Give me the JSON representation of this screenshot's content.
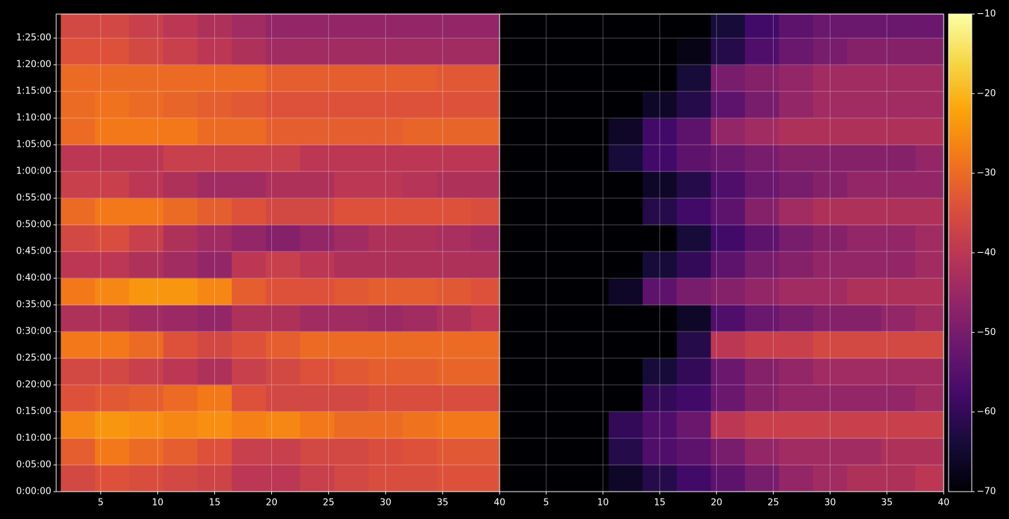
{
  "chart_data": [
    {
      "type": "heatmap",
      "x": [
        3,
        6,
        9,
        12,
        15,
        18,
        21,
        24,
        27,
        30,
        33,
        36,
        39
      ],
      "y": [
        2.5,
        7.5,
        12.5,
        17.5,
        22.5,
        27.5,
        32.5,
        37.5,
        42.5,
        47.5,
        52.5,
        57.5,
        62.5,
        67.5,
        72.5,
        77.5,
        82.5,
        87.5
      ],
      "values": [
        [
          -36,
          -34,
          -35,
          -36,
          -37,
          -40,
          -40,
          -38,
          -36,
          -35,
          -35,
          -34,
          -34
        ],
        [
          -32,
          -28,
          -30,
          -32,
          -34,
          -38,
          -38,
          -36,
          -36,
          -35,
          -34,
          -33,
          -33
        ],
        [
          -26,
          -24,
          -25,
          -26,
          -25,
          -27,
          -26,
          -28,
          -30,
          -30,
          -29,
          -28,
          -28
        ],
        [
          -34,
          -33,
          -32,
          -30,
          -28,
          -34,
          -36,
          -36,
          -36,
          -35,
          -35,
          -35,
          -35
        ],
        [
          -36,
          -36,
          -38,
          -40,
          -42,
          -38,
          -36,
          -34,
          -33,
          -32,
          -32,
          -31,
          -31
        ],
        [
          -28,
          -28,
          -30,
          -34,
          -36,
          -34,
          -32,
          -30,
          -30,
          -30,
          -30,
          -30,
          -30
        ],
        [
          -42,
          -42,
          -44,
          -45,
          -46,
          -42,
          -42,
          -44,
          -44,
          -45,
          -44,
          -42,
          -40
        ],
        [
          -28,
          -26,
          -24,
          -24,
          -26,
          -32,
          -34,
          -34,
          -33,
          -32,
          -32,
          -33,
          -34
        ],
        [
          -40,
          -40,
          -42,
          -44,
          -46,
          -40,
          -38,
          -40,
          -42,
          -42,
          -42,
          -42,
          -42
        ],
        [
          -36,
          -35,
          -38,
          -42,
          -44,
          -46,
          -48,
          -46,
          -44,
          -42,
          -42,
          -43,
          -44
        ],
        [
          -30,
          -28,
          -28,
          -30,
          -32,
          -34,
          -36,
          -36,
          -34,
          -34,
          -34,
          -34,
          -35
        ],
        [
          -38,
          -38,
          -40,
          -42,
          -44,
          -44,
          -42,
          -42,
          -40,
          -40,
          -41,
          -42,
          -42
        ],
        [
          -40,
          -40,
          -40,
          -38,
          -38,
          -38,
          -38,
          -40,
          -40,
          -40,
          -40,
          -40,
          -40
        ],
        [
          -30,
          -28,
          -28,
          -28,
          -30,
          -30,
          -32,
          -32,
          -32,
          -32,
          -31,
          -31,
          -31
        ],
        [
          -30,
          -29,
          -30,
          -31,
          -32,
          -33,
          -34,
          -34,
          -34,
          -34,
          -34,
          -34,
          -34
        ],
        [
          -30,
          -30,
          -30,
          -30,
          -30,
          -30,
          -32,
          -32,
          -32,
          -32,
          -32,
          -33,
          -33
        ],
        [
          -34,
          -34,
          -36,
          -38,
          -40,
          -42,
          -44,
          -44,
          -44,
          -44,
          -44,
          -44,
          -44
        ],
        [
          -36,
          -36,
          -38,
          -40,
          -42,
          -44,
          -46,
          -46,
          -46,
          -46,
          -46,
          -46,
          -46
        ]
      ],
      "xlim": [
        1.1,
        40
      ],
      "xticks": [
        5,
        10,
        15,
        20,
        25,
        30,
        35,
        40
      ],
      "ylim": [
        0,
        89.5
      ],
      "yticks": [
        {
          "value": 0,
          "label": "0:00:00"
        },
        {
          "value": 5,
          "label": "0:05:00"
        },
        {
          "value": 10,
          "label": "0:10:00"
        },
        {
          "value": 15,
          "label": "0:15:00"
        },
        {
          "value": 20,
          "label": "0:20:00"
        },
        {
          "value": 25,
          "label": "0:25:00"
        },
        {
          "value": 30,
          "label": "0:30:00"
        },
        {
          "value": 35,
          "label": "0:35:00"
        },
        {
          "value": 40,
          "label": "0:40:00"
        },
        {
          "value": 45,
          "label": "0:45:00"
        },
        {
          "value": 50,
          "label": "0:50:00"
        },
        {
          "value": 55,
          "label": "0:55:00"
        },
        {
          "value": 60,
          "label": "1:00:00"
        },
        {
          "value": 65,
          "label": "1:05:00"
        },
        {
          "value": 70,
          "label": "1:10:00"
        },
        {
          "value": 75,
          "label": "1:15:00"
        },
        {
          "value": 80,
          "label": "1:20:00"
        },
        {
          "value": 85,
          "label": "1:25:00"
        }
      ],
      "grid": true
    },
    {
      "type": "heatmap",
      "x": [
        3,
        6,
        9,
        12,
        15,
        18,
        21,
        24,
        27,
        30,
        33,
        36,
        39
      ],
      "y": [
        2.5,
        7.5,
        12.5,
        17.5,
        22.5,
        27.5,
        32.5,
        37.5,
        42.5,
        47.5,
        52.5,
        57.5,
        62.5,
        67.5,
        72.5,
        77.5,
        82.5,
        87.5
      ],
      "values": [
        [
          -70,
          -70,
          -70,
          -66,
          -62,
          -58,
          -54,
          -50,
          -46,
          -44,
          -42,
          -42,
          -40
        ],
        [
          -70,
          -70,
          -70,
          -62,
          -56,
          -54,
          -50,
          -46,
          -44,
          -44,
          -44,
          -42,
          -42
        ],
        [
          -70,
          -70,
          -70,
          -60,
          -56,
          -52,
          -40,
          -38,
          -38,
          -38,
          -38,
          -38,
          -38
        ],
        [
          -70,
          -70,
          -70,
          -70,
          -60,
          -58,
          -52,
          -48,
          -46,
          -46,
          -46,
          -46,
          -44
        ],
        [
          -70,
          -70,
          -70,
          -70,
          -64,
          -60,
          -52,
          -48,
          -46,
          -44,
          -44,
          -44,
          -44
        ],
        [
          -70,
          -70,
          -70,
          -70,
          -70,
          -62,
          -40,
          -38,
          -38,
          -36,
          -36,
          -36,
          -36
        ],
        [
          -70,
          -70,
          -70,
          -70,
          -70,
          -66,
          -56,
          -52,
          -50,
          -48,
          -48,
          -46,
          -44
        ],
        [
          -70,
          -70,
          -70,
          -66,
          -54,
          -50,
          -48,
          -46,
          -44,
          -44,
          -42,
          -42,
          -42
        ],
        [
          -70,
          -70,
          -70,
          -70,
          -64,
          -60,
          -54,
          -50,
          -48,
          -46,
          -46,
          -46,
          -44
        ],
        [
          -70,
          -70,
          -70,
          -70,
          -70,
          -64,
          -58,
          -54,
          -50,
          -48,
          -46,
          -46,
          -44
        ],
        [
          -70,
          -70,
          -70,
          -70,
          -62,
          -58,
          -54,
          -48,
          -44,
          -42,
          -42,
          -42,
          -42
        ],
        [
          -70,
          -70,
          -70,
          -70,
          -66,
          -62,
          -56,
          -52,
          -50,
          -48,
          -46,
          -46,
          -46
        ],
        [
          -70,
          -70,
          -70,
          -64,
          -58,
          -54,
          -52,
          -50,
          -48,
          -48,
          -48,
          -48,
          -46
        ],
        [
          -70,
          -70,
          -70,
          -66,
          -58,
          -54,
          -46,
          -44,
          -42,
          -42,
          -42,
          -42,
          -42
        ],
        [
          -70,
          -70,
          -70,
          -70,
          -66,
          -62,
          -54,
          -50,
          -46,
          -44,
          -44,
          -44,
          -44
        ],
        [
          -70,
          -70,
          -70,
          -70,
          -70,
          -64,
          -50,
          -48,
          -46,
          -44,
          -44,
          -44,
          -44
        ],
        [
          -70,
          -70,
          -70,
          -70,
          -70,
          -68,
          -62,
          -56,
          -52,
          -50,
          -48,
          -48,
          -48
        ],
        [
          -70,
          -70,
          -70,
          -70,
          -70,
          -70,
          -64,
          -58,
          -54,
          -52,
          -52,
          -52,
          -52
        ]
      ],
      "xlim": [
        0.9,
        40
      ],
      "xticks": [
        5,
        10,
        15,
        20,
        25,
        30,
        35,
        40
      ],
      "ylim": [
        0,
        89.5
      ],
      "yticks": [
        0,
        5,
        10,
        15,
        20,
        25,
        30,
        35,
        40,
        45,
        50,
        55,
        60,
        65,
        70,
        75,
        80,
        85
      ],
      "grid": true
    },
    {
      "type": "colorbar",
      "colormap": "inferno",
      "clim": [
        -70,
        -10
      ],
      "ticks": [
        {
          "value": -70,
          "label": "−70"
        },
        {
          "value": -60,
          "label": "−60"
        },
        {
          "value": -50,
          "label": "−50"
        },
        {
          "value": -40,
          "label": "−40"
        },
        {
          "value": -30,
          "label": "−30"
        },
        {
          "value": -20,
          "label": "−20"
        },
        {
          "value": -10,
          "label": "−10"
        }
      ]
    }
  ]
}
